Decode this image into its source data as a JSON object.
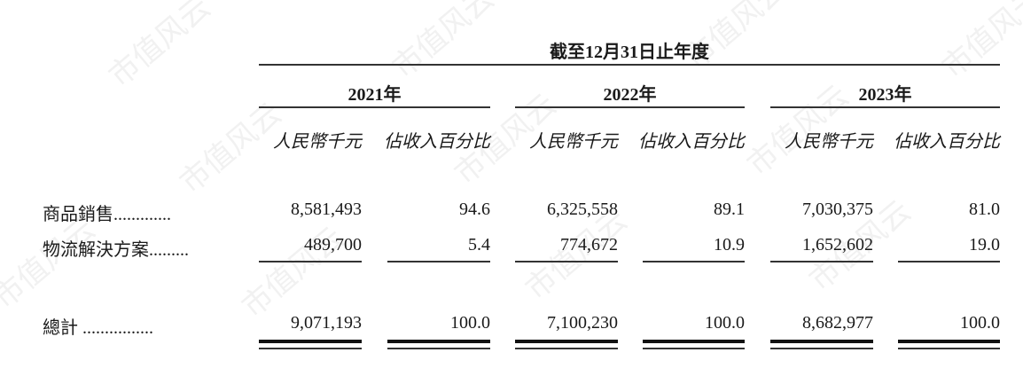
{
  "watermark": "市值风云",
  "header": {
    "title": "截至12月31日止年度"
  },
  "years": [
    "2021年",
    "2022年",
    "2023年"
  ],
  "subheaders": [
    "人民幣千元",
    "佔收入百分比"
  ],
  "rows": [
    {
      "label": "商品銷售.............",
      "values": [
        "8,581,493",
        "94.6",
        "6,325,558",
        "89.1",
        "7,030,375",
        "81.0"
      ]
    },
    {
      "label": "物流解決方案.........",
      "values": [
        "489,700",
        "5.4",
        "774,672",
        "10.9",
        "1,652,602",
        "19.0"
      ]
    }
  ],
  "total": {
    "label": "總計 ................",
    "values": [
      "9,071,193",
      "100.0",
      "7,100,230",
      "100.0",
      "8,682,977",
      "100.0"
    ]
  }
}
